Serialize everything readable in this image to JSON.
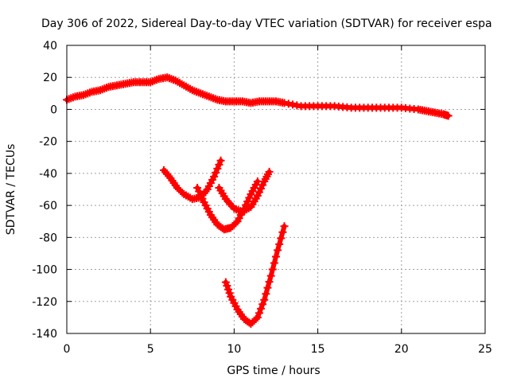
{
  "chart_data": {
    "type": "scatter",
    "title": "Day 306 of 2022, Sidereal Day-to-day VTEC variation (SDTVAR) for receiver espa",
    "xlabel": "GPS time / hours",
    "ylabel": "SDTVAR / TECUs",
    "xlim": [
      0,
      25
    ],
    "ylim": [
      -140,
      40
    ],
    "xticks": [
      0,
      5,
      10,
      15,
      20,
      25
    ],
    "yticks": [
      40,
      20,
      0,
      -20,
      -40,
      -60,
      -80,
      -100,
      -120,
      -140
    ],
    "grid": true,
    "marker_color": "#ff0000",
    "series": [
      {
        "name": "main",
        "points": [
          [
            0,
            6
          ],
          [
            0.5,
            8
          ],
          [
            1,
            9
          ],
          [
            1.5,
            11
          ],
          [
            2,
            12
          ],
          [
            2.5,
            14
          ],
          [
            3,
            15
          ],
          [
            3.5,
            16
          ],
          [
            4,
            17
          ],
          [
            4.5,
            17
          ],
          [
            5,
            17
          ],
          [
            5.5,
            19
          ],
          [
            6,
            20
          ],
          [
            6.5,
            18
          ],
          [
            7,
            15
          ],
          [
            7.5,
            12
          ],
          [
            8,
            10
          ],
          [
            8.5,
            8
          ],
          [
            9,
            6
          ],
          [
            9.5,
            5
          ],
          [
            10,
            5
          ],
          [
            10.5,
            5
          ],
          [
            11,
            4
          ],
          [
            11.5,
            5
          ],
          [
            12,
            5
          ],
          [
            12.5,
            5
          ],
          [
            13,
            4
          ],
          [
            14,
            2
          ],
          [
            15,
            2
          ],
          [
            16,
            2
          ],
          [
            17,
            1
          ],
          [
            18,
            1
          ],
          [
            19,
            1
          ],
          [
            20,
            1
          ],
          [
            21,
            0
          ],
          [
            21.5,
            -1
          ],
          [
            22,
            -2
          ],
          [
            22.5,
            -3
          ],
          [
            22.8,
            -4
          ]
        ]
      },
      {
        "name": "arc1",
        "points": [
          [
            5.8,
            -38
          ],
          [
            6.2,
            -43
          ],
          [
            6.6,
            -49
          ],
          [
            7,
            -53
          ],
          [
            7.5,
            -56
          ],
          [
            8,
            -55
          ],
          [
            8.4,
            -50
          ],
          [
            8.8,
            -42
          ],
          [
            9.2,
            -32
          ]
        ]
      },
      {
        "name": "arc2",
        "points": [
          [
            7.8,
            -49
          ],
          [
            8.2,
            -58
          ],
          [
            8.6,
            -66
          ],
          [
            9,
            -72
          ],
          [
            9.4,
            -75
          ],
          [
            9.8,
            -74
          ],
          [
            10.2,
            -70
          ],
          [
            10.6,
            -62
          ],
          [
            11,
            -53
          ],
          [
            11.4,
            -45
          ]
        ]
      },
      {
        "name": "arc3",
        "points": [
          [
            9.1,
            -49
          ],
          [
            9.5,
            -56
          ],
          [
            10,
            -62
          ],
          [
            10.5,
            -64
          ],
          [
            11,
            -61
          ],
          [
            11.4,
            -54
          ],
          [
            11.8,
            -45
          ],
          [
            12.1,
            -39
          ]
        ]
      },
      {
        "name": "arc4",
        "points": [
          [
            9.5,
            -108
          ],
          [
            9.8,
            -117
          ],
          [
            10.2,
            -125
          ],
          [
            10.6,
            -131
          ],
          [
            11,
            -134
          ],
          [
            11.4,
            -130
          ],
          [
            11.8,
            -119
          ],
          [
            12.2,
            -104
          ],
          [
            12.6,
            -88
          ],
          [
            13,
            -73
          ]
        ]
      }
    ]
  }
}
